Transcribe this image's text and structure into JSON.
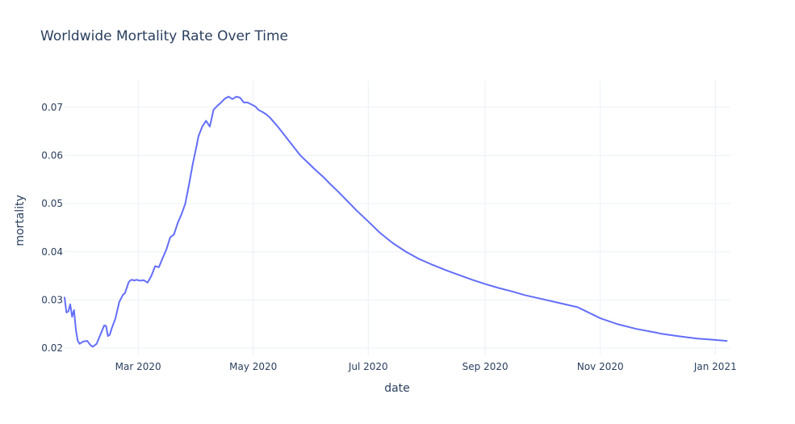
{
  "chart_data": {
    "type": "line",
    "title": "Worldwide Mortality Rate Over Time",
    "xlabel": "date",
    "ylabel": "mortality",
    "xlim": [
      "2020-01-22",
      "2021-01-09"
    ],
    "ylim": [
      0.0185,
      0.0755
    ],
    "x_ticks": [
      {
        "date": "2020-03-01",
        "label": "Mar 2020"
      },
      {
        "date": "2020-05-01",
        "label": "May 2020"
      },
      {
        "date": "2020-07-01",
        "label": "Jul 2020"
      },
      {
        "date": "2020-09-01",
        "label": "Sep 2020"
      },
      {
        "date": "2020-11-01",
        "label": "Nov 2020"
      },
      {
        "date": "2021-01-01",
        "label": "Jan 2021"
      }
    ],
    "y_ticks": [
      {
        "value": 0.02,
        "label": "0.02"
      },
      {
        "value": 0.03,
        "label": "0.03"
      },
      {
        "value": 0.04,
        "label": "0.04"
      },
      {
        "value": 0.05,
        "label": "0.05"
      },
      {
        "value": 0.06,
        "label": "0.06"
      },
      {
        "value": 0.07,
        "label": "0.07"
      }
    ],
    "grid": true,
    "line_color": "#636efa",
    "x": [
      "2020-01-22",
      "2020-01-23",
      "2020-01-24",
      "2020-01-25",
      "2020-01-26",
      "2020-01-27",
      "2020-01-28",
      "2020-01-29",
      "2020-01-30",
      "2020-02-01",
      "2020-02-03",
      "2020-02-05",
      "2020-02-06",
      "2020-02-08",
      "2020-02-10",
      "2020-02-12",
      "2020-02-13",
      "2020-02-14",
      "2020-02-15",
      "2020-02-16",
      "2020-02-18",
      "2020-02-20",
      "2020-02-22",
      "2020-02-23",
      "2020-02-25",
      "2020-02-26",
      "2020-02-27",
      "2020-02-28",
      "2020-02-29",
      "2020-03-02",
      "2020-03-04",
      "2020-03-06",
      "2020-03-08",
      "2020-03-10",
      "2020-03-12",
      "2020-03-14",
      "2020-03-16",
      "2020-03-18",
      "2020-03-20",
      "2020-03-22",
      "2020-03-24",
      "2020-03-26",
      "2020-03-28",
      "2020-03-30",
      "2020-04-01",
      "2020-04-02",
      "2020-04-04",
      "2020-04-06",
      "2020-04-08",
      "2020-04-10",
      "2020-04-12",
      "2020-04-14",
      "2020-04-16",
      "2020-04-18",
      "2020-04-20",
      "2020-04-22",
      "2020-04-24",
      "2020-04-26",
      "2020-04-28",
      "2020-04-30",
      "2020-05-02",
      "2020-05-04",
      "2020-05-06",
      "2020-05-08",
      "2020-05-10",
      "2020-05-14",
      "2020-05-18",
      "2020-05-22",
      "2020-05-26",
      "2020-05-30",
      "2020-06-03",
      "2020-06-07",
      "2020-06-11",
      "2020-06-15",
      "2020-06-20",
      "2020-06-25",
      "2020-07-01",
      "2020-07-07",
      "2020-07-14",
      "2020-07-21",
      "2020-07-28",
      "2020-08-04",
      "2020-08-11",
      "2020-08-18",
      "2020-08-25",
      "2020-09-01",
      "2020-09-08",
      "2020-09-15",
      "2020-09-22",
      "2020-10-01",
      "2020-10-10",
      "2020-10-20",
      "2020-11-01",
      "2020-11-10",
      "2020-11-20",
      "2020-12-01",
      "2020-12-03",
      "2020-12-12",
      "2020-12-22",
      "2021-01-01",
      "2021-01-07"
    ],
    "y": [
      0.0305,
      0.0274,
      0.0276,
      0.0291,
      0.0265,
      0.0279,
      0.0238,
      0.0215,
      0.0209,
      0.0214,
      0.0215,
      0.0205,
      0.0203,
      0.0209,
      0.0228,
      0.0247,
      0.0246,
      0.0225,
      0.0228,
      0.0241,
      0.0262,
      0.0296,
      0.0311,
      0.0314,
      0.0337,
      0.0341,
      0.0342,
      0.034,
      0.0342,
      0.034,
      0.0341,
      0.0336,
      0.035,
      0.037,
      0.0368,
      0.0387,
      0.0405,
      0.043,
      0.0436,
      0.046,
      0.0478,
      0.05,
      0.054,
      0.0583,
      0.062,
      0.064,
      0.066,
      0.0672,
      0.066,
      0.0695,
      0.0703,
      0.071,
      0.0718,
      0.0722,
      0.0717,
      0.0722,
      0.072,
      0.071,
      0.071,
      0.0706,
      0.0702,
      0.0694,
      0.069,
      0.0685,
      0.0678,
      0.066,
      0.064,
      0.062,
      0.06,
      0.0585,
      0.057,
      0.0556,
      0.054,
      0.0525,
      0.0505,
      0.0485,
      0.0463,
      0.044,
      0.0418,
      0.04,
      0.0385,
      0.0373,
      0.0362,
      0.0352,
      0.0342,
      0.0333,
      0.0325,
      0.0318,
      0.031,
      0.0302,
      0.0294,
      0.0285,
      0.0262,
      0.025,
      0.024,
      0.0232,
      0.023,
      0.0225,
      0.022,
      0.0217,
      0.0215
    ]
  }
}
